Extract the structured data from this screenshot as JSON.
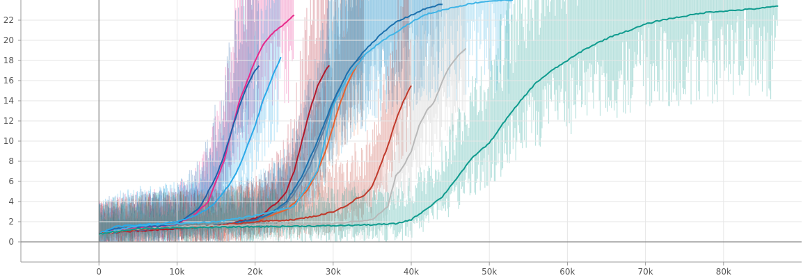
{
  "chart_data": {
    "type": "line",
    "title": "",
    "xlabel": "",
    "ylabel": "",
    "xlim": [
      -10000,
      90000
    ],
    "ylim": [
      -2,
      24
    ],
    "grid": true,
    "legend": "none",
    "x_ticks": [
      {
        "value": 0,
        "label": "0"
      },
      {
        "value": 10000,
        "label": "10k"
      },
      {
        "value": 20000,
        "label": "20k"
      },
      {
        "value": 30000,
        "label": "30k"
      },
      {
        "value": 40000,
        "label": "40k"
      },
      {
        "value": 50000,
        "label": "50k"
      },
      {
        "value": 60000,
        "label": "60k"
      },
      {
        "value": 70000,
        "label": "70k"
      },
      {
        "value": 80000,
        "label": "80k"
      }
    ],
    "y_ticks": [
      {
        "value": 0,
        "label": "0"
      },
      {
        "value": 2,
        "label": "2"
      },
      {
        "value": 4,
        "label": "4"
      },
      {
        "value": 6,
        "label": "6"
      },
      {
        "value": 8,
        "label": "8"
      },
      {
        "value": 10,
        "label": "10"
      },
      {
        "value": 12,
        "label": "12"
      },
      {
        "value": 14,
        "label": "14"
      },
      {
        "value": 16,
        "label": "16"
      },
      {
        "value": 18,
        "label": "18"
      },
      {
        "value": 20,
        "label": "20"
      },
      {
        "value": 22,
        "label": "22"
      }
    ],
    "series": [
      {
        "color": "#e7298a",
        "x": [
          0,
          2000,
          5000,
          8000,
          10000,
          12000,
          14000,
          16000,
          18000,
          20000,
          21000,
          22000,
          23000,
          24000,
          25000
        ],
        "y": [
          0.8,
          1.2,
          1.4,
          1.5,
          1.8,
          2.5,
          4.0,
          8.0,
          14.0,
          18.0,
          19.5,
          20.5,
          21.2,
          21.8,
          22.5
        ]
      },
      {
        "color": "#1f5fa8",
        "x": [
          0,
          2000,
          5000,
          8000,
          10000,
          12000,
          13000,
          14000,
          15000,
          16000,
          17000,
          18000,
          19000,
          20000,
          20500
        ],
        "y": [
          0.8,
          1.3,
          1.5,
          1.6,
          1.8,
          2.8,
          3.5,
          5.0,
          6.5,
          8.5,
          11.0,
          13.5,
          15.5,
          17.0,
          17.5
        ]
      },
      {
        "color": "#29a9e8",
        "x": [
          0,
          2000,
          5000,
          8000,
          10000,
          12000,
          14000,
          15000,
          16000,
          17000,
          18000,
          19000,
          20000,
          21000,
          22000,
          23000,
          23300
        ],
        "y": [
          0.8,
          1.5,
          1.7,
          1.8,
          2.0,
          2.5,
          3.3,
          4.0,
          5.0,
          6.0,
          7.5,
          9.5,
          11.5,
          14.0,
          16.0,
          17.8,
          18.3
        ]
      },
      {
        "color": "#b2182b",
        "x": [
          0,
          3000,
          6000,
          10000,
          15000,
          20000,
          21000,
          22000,
          23000,
          24000,
          25000,
          26000,
          27000,
          28000,
          29000,
          29500
        ],
        "y": [
          0.8,
          1.0,
          1.1,
          1.3,
          1.6,
          2.3,
          2.7,
          3.4,
          4.0,
          5.0,
          7.0,
          10.0,
          13.0,
          15.5,
          17.0,
          17.5
        ]
      },
      {
        "color": "#e9622f",
        "x": [
          0,
          5000,
          10000,
          15000,
          20000,
          24000,
          26000,
          27000,
          28000,
          29000,
          30000,
          31000,
          32000,
          33000,
          34000
        ],
        "y": [
          0.8,
          1.2,
          1.4,
          1.6,
          2.0,
          3.2,
          4.5,
          5.5,
          7.0,
          9.0,
          11.5,
          14.0,
          16.0,
          17.5,
          18.5
        ]
      },
      {
        "color": "#5d7fa3",
        "x": [
          0,
          5000,
          10000,
          15000,
          20000,
          23000,
          24000,
          25000,
          26000,
          27000,
          28000,
          29000,
          30000,
          31000,
          32000,
          33000,
          34000
        ],
        "y": [
          0.8,
          1.2,
          1.4,
          1.6,
          2.0,
          3.2,
          3.8,
          4.8,
          6.0,
          7.5,
          9.5,
          11.5,
          13.8,
          15.5,
          17.0,
          18.0,
          18.5
        ]
      },
      {
        "color": "#1c70ad",
        "x": [
          0,
          5000,
          10000,
          15000,
          20000,
          22000,
          24000,
          26000,
          28000,
          30000,
          32000,
          34000,
          36000,
          38000,
          40000,
          42000,
          44000
        ],
        "y": [
          0.8,
          1.2,
          1.4,
          1.6,
          2.2,
          2.8,
          4.0,
          6.5,
          10.0,
          14.0,
          17.0,
          19.0,
          20.5,
          21.8,
          22.5,
          23.2,
          23.6
        ]
      },
      {
        "color": "#3fb4e6",
        "x": [
          0,
          5000,
          10000,
          15000,
          20000,
          25000,
          28000,
          30000,
          32000,
          34000,
          36000,
          38000,
          40000,
          42000,
          45000,
          48000,
          50000,
          53000
        ],
        "y": [
          0.8,
          1.6,
          1.8,
          2.0,
          2.6,
          3.5,
          7.0,
          13.5,
          16.5,
          18.5,
          19.8,
          20.8,
          21.8,
          22.6,
          23.2,
          23.7,
          23.9,
          24.0
        ]
      },
      {
        "color": "#c0392b",
        "x": [
          0,
          5000,
          10000,
          15000,
          20000,
          25000,
          28000,
          30000,
          32000,
          33000,
          34000,
          35000,
          36000,
          37000,
          38000,
          39000,
          40000
        ],
        "y": [
          0.8,
          1.2,
          1.4,
          1.6,
          2.0,
          2.2,
          2.6,
          3.0,
          3.7,
          4.3,
          4.6,
          5.5,
          7.5,
          9.5,
          12.0,
          14.0,
          15.5
        ]
      },
      {
        "color": "#b8b8b8",
        "x": [
          0,
          5000,
          10000,
          20000,
          30000,
          35000,
          37000,
          38000,
          39000,
          40000,
          41000,
          42000,
          43000,
          44000,
          45000,
          46000,
          47000
        ],
        "y": [
          0.8,
          1.3,
          1.5,
          1.7,
          1.8,
          2.2,
          3.5,
          6.5,
          7.5,
          9.0,
          11.5,
          13.0,
          14.0,
          16.0,
          17.5,
          18.5,
          19.2
        ]
      },
      {
        "color": "#0f9b8e",
        "x": [
          0,
          5000,
          10000,
          20000,
          30000,
          35000,
          38000,
          40000,
          42000,
          44000,
          46000,
          48000,
          50000,
          52000,
          54000,
          56000,
          58000,
          60000,
          62000,
          64000,
          66000,
          68000,
          70000,
          72000,
          75000,
          78000,
          82000,
          85000,
          87000
        ],
        "y": [
          0.8,
          1.3,
          1.4,
          1.5,
          1.6,
          1.7,
          1.8,
          2.2,
          3.3,
          4.5,
          6.5,
          8.5,
          9.8,
          12.0,
          14.0,
          15.8,
          17.0,
          18.0,
          19.0,
          19.8,
          20.5,
          21.0,
          21.6,
          22.0,
          22.4,
          22.8,
          23.0,
          23.2,
          23.4
        ]
      }
    ]
  }
}
